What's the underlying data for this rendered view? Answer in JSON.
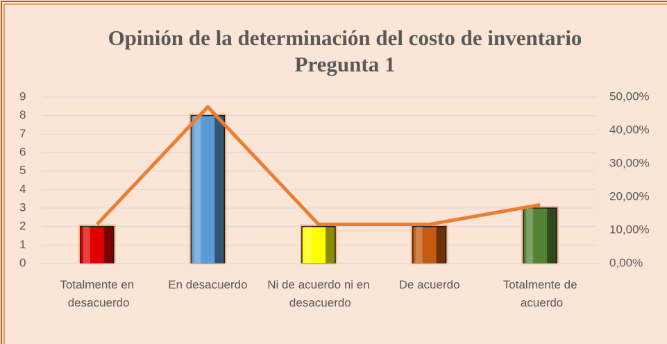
{
  "chart_data": {
    "type": "bar_line",
    "title": [
      "Opinión de la determinación del costo de inventario",
      "Pregunta 1"
    ],
    "categories": [
      "Totalmente en desacuerdo",
      "En desacuerdo",
      "Ni de acuerdo ni en desacuerdo",
      "De acuerdo",
      "Totalmente de acuerdo"
    ],
    "series": [
      {
        "type": "bar",
        "colors": [
          "#e00000",
          "#5b9bd5",
          "#ffff00",
          "#c55a11",
          "#548235"
        ],
        "values": [
          2,
          8,
          2,
          2,
          3
        ]
      },
      {
        "type": "line",
        "axis": "y2",
        "color": "#ed7d31",
        "values": [
          11.76,
          47.06,
          11.76,
          11.76,
          17.65
        ]
      }
    ],
    "ylim": [
      0,
      9
    ],
    "yticks": [
      0,
      1,
      2,
      3,
      4,
      5,
      6,
      7,
      8,
      9
    ],
    "y2lim": [
      0,
      50
    ],
    "y2ticks": [
      {
        "value": 0,
        "label": "0,00%"
      },
      {
        "value": 10,
        "label": "10,00%"
      },
      {
        "value": 20,
        "label": "20,00%"
      },
      {
        "value": 30,
        "label": "30,00%"
      },
      {
        "value": 40,
        "label": "40,00%"
      },
      {
        "value": 50,
        "label": "50,00%"
      }
    ],
    "grid": true
  }
}
